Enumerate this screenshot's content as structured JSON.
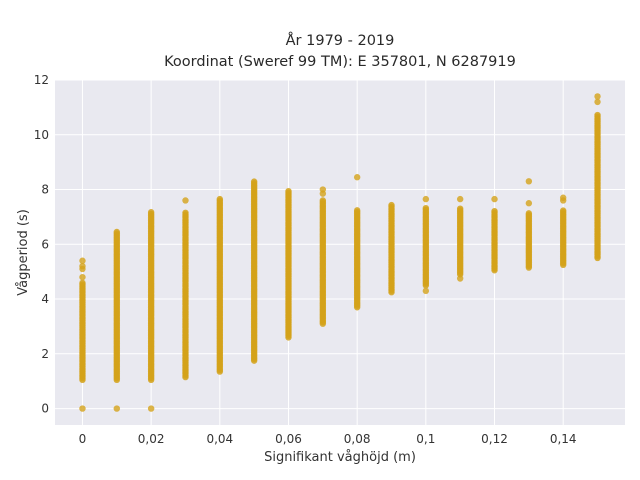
{
  "chart_data": {
    "type": "scatter",
    "title": [
      "År 1979 - 2019",
      "Koordinat (Sweref 99 TM): E 357801, N 6287919"
    ],
    "xlabel": "Signifikant våghöjd (m)",
    "ylabel": "Vågperiod (s)",
    "xlim": [
      -0.008,
      0.158
    ],
    "ylim": [
      -0.6,
      12
    ],
    "x_ticks": [
      0,
      0.02,
      0.04,
      0.06,
      0.08,
      0.1,
      0.12,
      0.14
    ],
    "x_tick_labels": [
      "0",
      "0,02",
      "0,04",
      "0,06",
      "0,08",
      "0,1",
      "0,12",
      "0,14"
    ],
    "y_ticks": [
      0,
      2,
      4,
      6,
      8,
      10,
      12
    ],
    "y_tick_labels": [
      "0",
      "2",
      "4",
      "6",
      "8",
      "10",
      "12"
    ],
    "grid": true,
    "marker_color": "#d4a21a",
    "background_color": "#e9e9f0",
    "grid_color": "#ffffff",
    "columns": [
      {
        "x": 0,
        "y_min": 1.05,
        "y_max": 4.6,
        "isolated": [
          0.0,
          4.8,
          5.1,
          5.2,
          5.4
        ]
      },
      {
        "x": 0.01,
        "y_min": 1.05,
        "y_max": 6.5,
        "isolated": [
          0.0
        ]
      },
      {
        "x": 0.02,
        "y_min": 1.05,
        "y_max": 7.2,
        "isolated": [
          0.0
        ]
      },
      {
        "x": 0.03,
        "y_min": 1.15,
        "y_max": 7.2,
        "isolated": [
          7.6
        ]
      },
      {
        "x": 0.04,
        "y_min": 1.35,
        "y_max": 7.7,
        "isolated": []
      },
      {
        "x": 0.05,
        "y_min": 1.75,
        "y_max": 8.3,
        "isolated": []
      },
      {
        "x": 0.06,
        "y_min": 2.6,
        "y_max": 7.95,
        "isolated": []
      },
      {
        "x": 0.07,
        "y_min": 3.1,
        "y_max": 7.6,
        "isolated": [
          7.85,
          8.0
        ]
      },
      {
        "x": 0.08,
        "y_min": 3.7,
        "y_max": 7.25,
        "isolated": [
          8.45
        ]
      },
      {
        "x": 0.09,
        "y_min": 4.25,
        "y_max": 7.45,
        "isolated": []
      },
      {
        "x": 0.1,
        "y_min": 4.5,
        "y_max": 7.35,
        "isolated": [
          4.3,
          7.65
        ]
      },
      {
        "x": 0.11,
        "y_min": 4.9,
        "y_max": 7.3,
        "isolated": [
          4.75,
          7.65
        ]
      },
      {
        "x": 0.12,
        "y_min": 5.05,
        "y_max": 7.25,
        "isolated": [
          7.65
        ]
      },
      {
        "x": 0.13,
        "y_min": 5.15,
        "y_max": 7.15,
        "isolated": [
          7.5,
          8.3
        ]
      },
      {
        "x": 0.14,
        "y_min": 5.25,
        "y_max": 7.25,
        "isolated": [
          7.6,
          7.7
        ]
      },
      {
        "x": 0.15,
        "y_min": 5.5,
        "y_max": 10.75,
        "isolated": [
          11.2,
          11.4
        ]
      }
    ]
  }
}
